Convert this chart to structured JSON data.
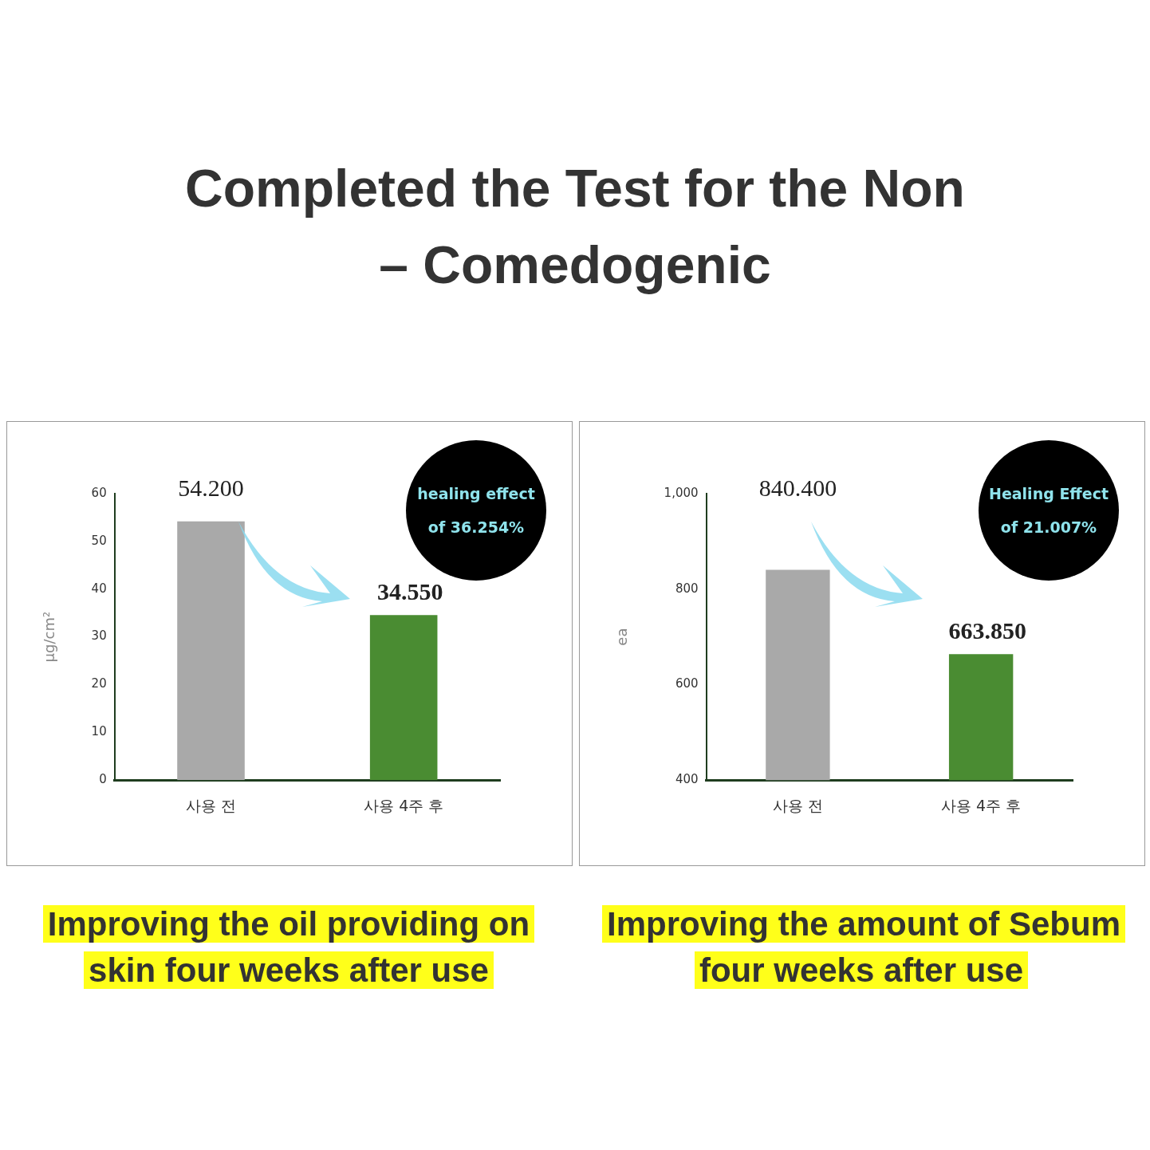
{
  "chart_data": [
    {
      "type": "bar",
      "title": "Completed the Test for the Non – Comedogenic",
      "ylabel": "μg/cm²",
      "categories": [
        "사용 전",
        "사용 4주 후"
      ],
      "values": [
        54.2,
        34.55
      ],
      "value_labels": [
        "54.200",
        "34.550"
      ],
      "colors": [
        "#a9a9a9",
        "#4a8c32"
      ],
      "ylim": [
        0,
        60
      ],
      "yticks": [
        0,
        10,
        20,
        30,
        40,
        50,
        60
      ],
      "grid": false,
      "legend": false,
      "annotations": [
        "healing effect of 36.254%",
        "Improving the oil providing on skin four weeks after use"
      ]
    },
    {
      "type": "bar",
      "ylabel": "ea",
      "categories": [
        "사용 전",
        "사용 4주 후"
      ],
      "values": [
        840.4,
        663.85
      ],
      "value_labels": [
        "840.400",
        "663.850"
      ],
      "colors": [
        "#a9a9a9",
        "#4a8c32"
      ],
      "ylim": [
        400,
        1000
      ],
      "yticks": [
        400,
        600,
        800,
        {
          "value": 1000,
          "label": "1,000"
        }
      ],
      "grid": false,
      "legend": false,
      "annotations": [
        "Healing Effect of 21.007%",
        "Improving the amount of Sebum four weeks after use"
      ]
    }
  ]
}
